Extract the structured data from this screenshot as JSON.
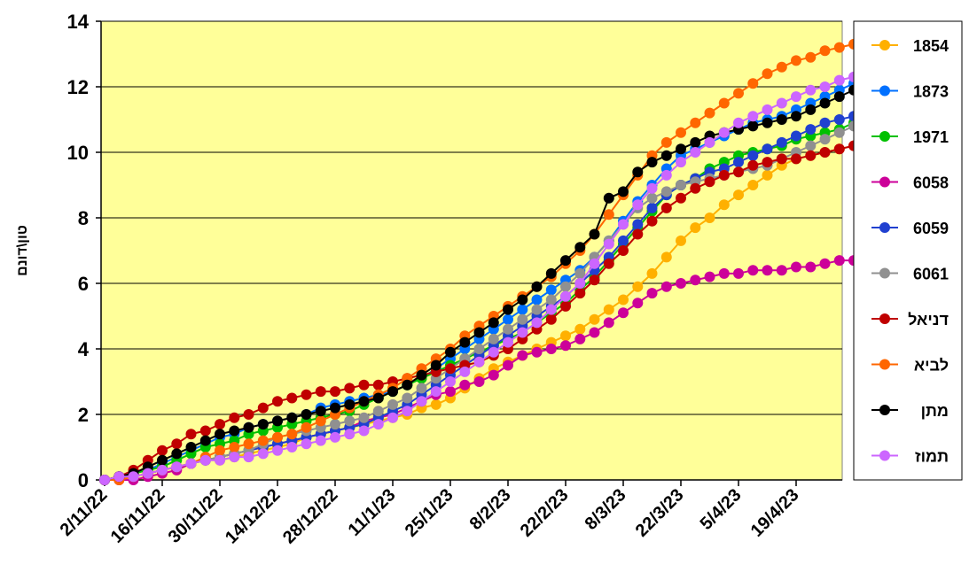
{
  "chart_data": {
    "type": "line",
    "title": "",
    "xlabel": "",
    "ylabel": "טון\\דונם",
    "ylim": [
      0,
      14
    ],
    "y_ticks": [
      0,
      2,
      4,
      6,
      8,
      10,
      12,
      14
    ],
    "x_tick_labels": [
      "2/11/22",
      "16/11/22",
      "30/11/22",
      "14/12/22",
      "28/12/22",
      "11/1/23",
      "25/1/23",
      "8/2/23",
      "22/2/23",
      "8/3/23",
      "22/3/23",
      "5/4/23",
      "19/4/23"
    ],
    "x_start": "2022-11-02",
    "x_step_days": 3.5,
    "grid": "horizontal",
    "background": "#FFFF99",
    "legend_position": "right",
    "series": [
      {
        "name": "1854",
        "color": "#FFB000",
        "values": [
          0,
          0.1,
          0.1,
          0.2,
          0.3,
          0.4,
          0.5,
          0.6,
          0.6,
          0.7,
          0.8,
          0.9,
          1.0,
          1.1,
          1.3,
          1.4,
          1.5,
          1.6,
          1.7,
          1.8,
          1.9,
          2.0,
          2.2,
          2.3,
          2.5,
          2.8,
          3.1,
          3.4,
          3.6,
          3.8,
          4.0,
          4.2,
          4.4,
          4.6,
          4.9,
          5.2,
          5.5,
          5.9,
          6.3,
          6.8,
          7.3,
          7.7,
          8.0,
          8.4,
          8.7,
          9.0,
          9.3,
          9.6,
          9.8,
          9.9,
          10.0,
          10.1,
          10.2,
          10.3
        ]
      },
      {
        "name": "1873",
        "color": "#0070FF",
        "values": [
          0,
          0.1,
          0.2,
          0.3,
          0.5,
          0.7,
          0.9,
          1.1,
          1.3,
          1.4,
          1.6,
          1.7,
          1.8,
          1.9,
          2.0,
          2.2,
          2.3,
          2.4,
          2.5,
          2.6,
          2.7,
          2.9,
          3.1,
          3.4,
          3.7,
          4.0,
          4.3,
          4.6,
          4.9,
          5.2,
          5.5,
          5.8,
          6.1,
          6.4,
          6.8,
          7.3,
          7.9,
          8.5,
          9.0,
          9.5,
          9.9,
          10.1,
          10.3,
          10.5,
          10.7,
          10.9,
          11.0,
          11.1,
          11.3,
          11.5,
          11.7,
          11.9,
          12.1,
          12.2
        ]
      },
      {
        "name": "1971",
        "color": "#00C000",
        "values": [
          0,
          0.1,
          0.2,
          0.3,
          0.4,
          0.6,
          0.8,
          1.0,
          1.1,
          1.2,
          1.4,
          1.5,
          1.6,
          1.7,
          1.8,
          1.9,
          2.0,
          2.1,
          2.3,
          2.5,
          2.7,
          2.9,
          3.1,
          3.3,
          3.5,
          3.7,
          3.9,
          4.1,
          4.3,
          4.5,
          4.8,
          5.1,
          5.4,
          5.8,
          6.2,
          6.7,
          7.2,
          7.7,
          8.2,
          8.7,
          9.0,
          9.2,
          9.5,
          9.7,
          9.9,
          10.0,
          10.1,
          10.2,
          10.4,
          10.5,
          10.6,
          10.7,
          10.9,
          11.0
        ]
      },
      {
        "name": "6058",
        "color": "#CC0099",
        "values": [
          0,
          0.0,
          0.0,
          0.1,
          0.2,
          0.3,
          0.5,
          0.6,
          0.7,
          0.8,
          0.9,
          1.0,
          1.1,
          1.2,
          1.3,
          1.4,
          1.5,
          1.6,
          1.8,
          1.9,
          2.0,
          2.2,
          2.4,
          2.6,
          2.7,
          2.9,
          3.0,
          3.2,
          3.5,
          3.8,
          3.9,
          4.0,
          4.1,
          4.3,
          4.5,
          4.8,
          5.1,
          5.4,
          5.7,
          5.9,
          6.0,
          6.1,
          6.2,
          6.3,
          6.3,
          6.4,
          6.4,
          6.4,
          6.5,
          6.5,
          6.6,
          6.7,
          6.7,
          6.8
        ]
      },
      {
        "name": "6059",
        "color": "#2040D0",
        "values": [
          0,
          0.1,
          0.1,
          0.2,
          0.3,
          0.4,
          0.5,
          0.6,
          0.7,
          0.8,
          0.9,
          1.0,
          1.1,
          1.2,
          1.3,
          1.4,
          1.5,
          1.6,
          1.7,
          1.9,
          2.1,
          2.3,
          2.6,
          2.9,
          3.2,
          3.5,
          3.8,
          4.1,
          4.4,
          4.7,
          5.0,
          5.3,
          5.6,
          6.0,
          6.4,
          6.8,
          7.3,
          7.8,
          8.3,
          8.7,
          9.0,
          9.2,
          9.4,
          9.5,
          9.7,
          9.9,
          10.1,
          10.3,
          10.5,
          10.7,
          10.9,
          11.0,
          11.1,
          11.2
        ]
      },
      {
        "name": "6061",
        "color": "#909090",
        "values": [
          0,
          0.1,
          0.1,
          0.2,
          0.3,
          0.4,
          0.5,
          0.6,
          0.7,
          0.8,
          0.9,
          1.1,
          1.3,
          1.4,
          1.5,
          1.6,
          1.7,
          1.8,
          1.9,
          2.1,
          2.3,
          2.5,
          2.8,
          3.1,
          3.4,
          3.7,
          4.0,
          4.3,
          4.6,
          4.9,
          5.2,
          5.5,
          5.9,
          6.3,
          6.8,
          7.3,
          7.8,
          8.3,
          8.6,
          8.8,
          9.0,
          9.1,
          9.2,
          9.3,
          9.4,
          9.5,
          9.6,
          9.8,
          10.0,
          10.2,
          10.4,
          10.6,
          10.8,
          10.9
        ]
      },
      {
        "name": "דניאל",
        "color": "#C00000",
        "values": [
          0,
          0.1,
          0.3,
          0.6,
          0.9,
          1.1,
          1.4,
          1.5,
          1.7,
          1.9,
          2.0,
          2.2,
          2.4,
          2.5,
          2.6,
          2.7,
          2.7,
          2.8,
          2.9,
          2.9,
          3.0,
          3.1,
          3.2,
          3.3,
          3.4,
          3.5,
          3.6,
          3.8,
          4.0,
          4.3,
          4.6,
          4.9,
          5.3,
          5.7,
          6.1,
          6.6,
          7.0,
          7.5,
          7.9,
          8.3,
          8.6,
          8.9,
          9.1,
          9.3,
          9.4,
          9.6,
          9.7,
          9.8,
          9.8,
          9.9,
          10.0,
          10.1,
          10.2,
          10.3
        ]
      },
      {
        "name": "לביא",
        "color": "#FF6600",
        "values": [
          0,
          0.0,
          0.1,
          0.2,
          0.3,
          0.4,
          0.5,
          0.7,
          0.9,
          1.0,
          1.1,
          1.2,
          1.3,
          1.4,
          1.6,
          1.8,
          2.0,
          2.2,
          2.4,
          2.6,
          2.8,
          3.1,
          3.4,
          3.7,
          4.0,
          4.4,
          4.7,
          5.0,
          5.3,
          5.6,
          5.9,
          6.2,
          6.6,
          7.0,
          7.5,
          8.1,
          8.7,
          9.3,
          9.9,
          10.3,
          10.6,
          10.9,
          11.2,
          11.5,
          11.8,
          12.1,
          12.4,
          12.6,
          12.8,
          12.9,
          13.1,
          13.2,
          13.3,
          13.5
        ]
      },
      {
        "name": "מתן",
        "color": "#000000",
        "values": [
          0,
          0.1,
          0.2,
          0.4,
          0.6,
          0.8,
          1.0,
          1.2,
          1.4,
          1.5,
          1.6,
          1.7,
          1.8,
          1.9,
          2.0,
          2.1,
          2.2,
          2.3,
          2.4,
          2.5,
          2.7,
          2.9,
          3.2,
          3.5,
          3.9,
          4.2,
          4.5,
          4.8,
          5.2,
          5.5,
          5.9,
          6.3,
          6.7,
          7.1,
          7.5,
          8.6,
          8.8,
          9.4,
          9.7,
          9.9,
          10.1,
          10.3,
          10.5,
          10.6,
          10.7,
          10.8,
          10.9,
          11.0,
          11.1,
          11.3,
          11.5,
          11.7,
          11.9,
          12.0
        ]
      },
      {
        "name": "תמוז",
        "color": "#CC66FF",
        "values": [
          0,
          0.1,
          0.1,
          0.2,
          0.3,
          0.4,
          0.5,
          0.6,
          0.6,
          0.7,
          0.7,
          0.8,
          0.9,
          1.0,
          1.1,
          1.2,
          1.3,
          1.4,
          1.5,
          1.7,
          1.9,
          2.1,
          2.4,
          2.7,
          3.0,
          3.3,
          3.6,
          3.9,
          4.2,
          4.5,
          4.8,
          5.2,
          5.6,
          6.0,
          6.6,
          7.2,
          7.8,
          8.4,
          8.9,
          9.3,
          9.7,
          10.0,
          10.3,
          10.6,
          10.9,
          11.1,
          11.3,
          11.5,
          11.7,
          11.9,
          12.0,
          12.2,
          12.3,
          12.4
        ]
      }
    ]
  }
}
